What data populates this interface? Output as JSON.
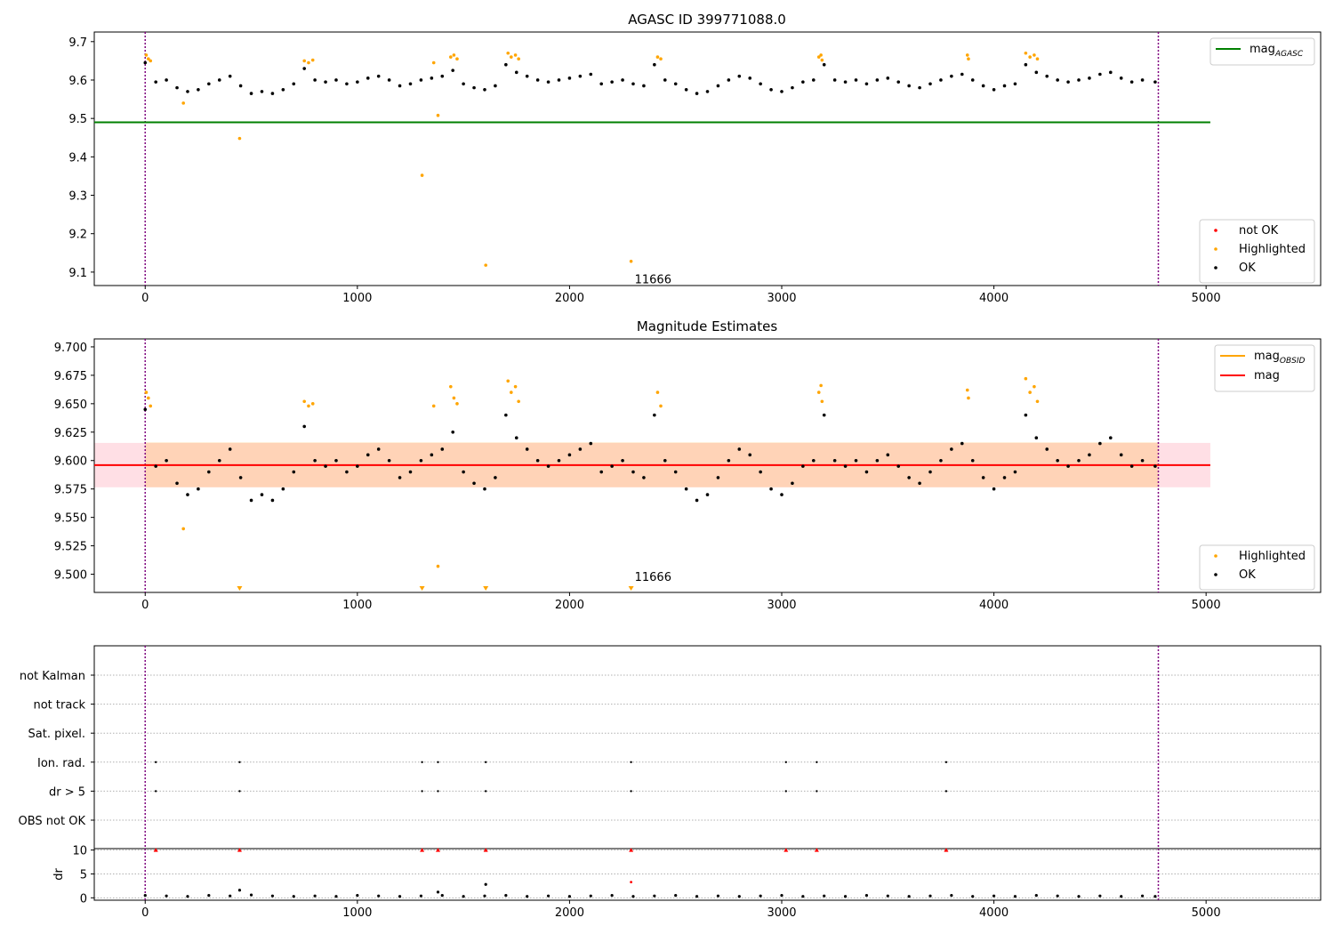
{
  "chart_data": [
    {
      "type": "scatter",
      "title": "AGASC ID 399771088.0",
      "xlim": [
        -240,
        5540
      ],
      "ylim": [
        9.065,
        9.725
      ],
      "xticks": [
        "0",
        "1000",
        "2000",
        "3000",
        "4000",
        "5000"
      ],
      "yticks": [
        "9.1",
        "9.2",
        "9.3",
        "9.4",
        "9.5",
        "9.6",
        "9.7"
      ],
      "obs_boundaries": [
        0,
        4775
      ],
      "legend_lines": [
        {
          "label": "mag",
          "subscript": "AGASC",
          "color": "#008000"
        }
      ],
      "legend_points": [
        {
          "label": "not OK",
          "color": "#ff0000"
        },
        {
          "label": "Highlighted",
          "color": "#ffa500"
        },
        {
          "label": "OK",
          "color": "#000000"
        }
      ],
      "mag_agasc": 9.49,
      "mag_agasc_xrange": [
        -240,
        5020
      ],
      "annotation": {
        "text": "11666",
        "x": 2290,
        "y": 9.08
      },
      "series": [
        {
          "label": "OK",
          "color": "#000000",
          "x": [
            0,
            50,
            100,
            150,
            200,
            250,
            300,
            350,
            400,
            450,
            500,
            550,
            600,
            650,
            700,
            750,
            800,
            850,
            900,
            950,
            1000,
            1050,
            1100,
            1150,
            1200,
            1250,
            1300,
            1350,
            1400,
            1450,
            1500,
            1550,
            1600,
            1650,
            1700,
            1750,
            1800,
            1850,
            1900,
            1950,
            2000,
            2050,
            2100,
            2150,
            2200,
            2250,
            2300,
            2350,
            2400,
            2450,
            2500,
            2550,
            2600,
            2650,
            2700,
            2750,
            2800,
            2850,
            2900,
            2950,
            3000,
            3050,
            3100,
            3150,
            3200,
            3250,
            3300,
            3350,
            3400,
            3450,
            3500,
            3550,
            3600,
            3650,
            3700,
            3750,
            3800,
            3850,
            3900,
            3950,
            4000,
            4050,
            4100,
            4150,
            4200,
            4250,
            4300,
            4350,
            4400,
            4450,
            4500,
            4550,
            4600,
            4650,
            4700,
            4760
          ],
          "y": [
            9.645,
            9.595,
            9.6,
            9.58,
            9.57,
            9.575,
            9.59,
            9.6,
            9.61,
            9.585,
            9.565,
            9.57,
            9.565,
            9.575,
            9.59,
            9.63,
            9.6,
            9.595,
            9.6,
            9.59,
            9.595,
            9.605,
            9.61,
            9.6,
            9.585,
            9.59,
            9.6,
            9.605,
            9.61,
            9.625,
            9.59,
            9.58,
            9.575,
            9.585,
            9.64,
            9.62,
            9.61,
            9.6,
            9.595,
            9.6,
            9.605,
            9.61,
            9.615,
            9.59,
            9.595,
            9.6,
            9.59,
            9.585,
            9.64,
            9.6,
            9.59,
            9.575,
            9.565,
            9.57,
            9.585,
            9.6,
            9.61,
            9.605,
            9.59,
            9.575,
            9.57,
            9.58,
            9.595,
            9.6,
            9.64,
            9.6,
            9.595,
            9.6,
            9.59,
            9.6,
            9.605,
            9.595,
            9.585,
            9.58,
            9.59,
            9.6,
            9.61,
            9.615,
            9.6,
            9.585,
            9.575,
            9.585,
            9.59,
            9.64,
            9.62,
            9.61,
            9.6,
            9.595,
            9.6,
            9.605,
            9.615,
            9.62,
            9.605,
            9.595,
            9.6,
            9.595
          ]
        },
        {
          "label": "Highlighted",
          "color": "#ffa500",
          "x": [
            5,
            15,
            25,
            180,
            445,
            750,
            770,
            790,
            1305,
            1360,
            1380,
            1440,
            1455,
            1470,
            1605,
            1710,
            1725,
            1745,
            1760,
            2290,
            2415,
            2430,
            3175,
            3185,
            3190,
            3875,
            3880,
            4150,
            4170,
            4190,
            4205
          ],
          "y": [
            9.665,
            9.655,
            9.65,
            9.54,
            9.448,
            9.65,
            9.645,
            9.652,
            9.352,
            9.645,
            9.508,
            9.66,
            9.665,
            9.655,
            9.118,
            9.67,
            9.66,
            9.665,
            9.655,
            9.128,
            9.66,
            9.655,
            9.66,
            9.665,
            9.652,
            9.665,
            9.655,
            9.67,
            9.66,
            9.665,
            9.655
          ]
        }
      ]
    },
    {
      "type": "scatter",
      "title": "Magnitude Estimates",
      "xlim": [
        -240,
        5540
      ],
      "ylim": [
        9.484,
        9.707
      ],
      "xticks": [
        "0",
        "1000",
        "2000",
        "3000",
        "4000",
        "5000"
      ],
      "yticks": [
        "9.500",
        "9.525",
        "9.550",
        "9.575",
        "9.600",
        "9.625",
        "9.650",
        "9.675",
        "9.700"
      ],
      "obs_boundaries": [
        0,
        4775
      ],
      "legend_lines": [
        {
          "label": "mag",
          "subscript": "OBSID",
          "color": "#ffa500"
        },
        {
          "label": "mag",
          "subscript": "",
          "color": "#ff0000"
        }
      ],
      "legend_points": [
        {
          "label": "Highlighted",
          "color": "#ffa500"
        },
        {
          "label": "OK",
          "color": "#000000"
        }
      ],
      "mag": 9.596,
      "mag_band": [
        9.5765,
        9.6155
      ],
      "mag_band_xrange": [
        -240,
        5020
      ],
      "mag_obsid_band": [
        9.5765,
        9.616
      ],
      "mag_obsid_band_xrange": [
        0,
        4775
      ],
      "annotation": {
        "text": "11666",
        "x": 2290,
        "y": 9.491
      },
      "lower_limit_markers_x": [
        445,
        1305,
        1605,
        2290
      ],
      "series": [
        {
          "label": "OK",
          "color": "#000000",
          "x": [
            0,
            50,
            100,
            150,
            200,
            250,
            300,
            350,
            400,
            450,
            500,
            550,
            600,
            650,
            700,
            750,
            800,
            850,
            900,
            950,
            1000,
            1050,
            1100,
            1150,
            1200,
            1250,
            1300,
            1350,
            1400,
            1450,
            1500,
            1550,
            1600,
            1650,
            1700,
            1750,
            1800,
            1850,
            1900,
            1950,
            2000,
            2050,
            2100,
            2150,
            2200,
            2250,
            2300,
            2350,
            2400,
            2450,
            2500,
            2550,
            2600,
            2650,
            2700,
            2750,
            2800,
            2850,
            2900,
            2950,
            3000,
            3050,
            3100,
            3150,
            3200,
            3250,
            3300,
            3350,
            3400,
            3450,
            3500,
            3550,
            3600,
            3650,
            3700,
            3750,
            3800,
            3850,
            3900,
            3950,
            4000,
            4050,
            4100,
            4150,
            4200,
            4250,
            4300,
            4350,
            4400,
            4450,
            4500,
            4550,
            4600,
            4650,
            4700,
            4760
          ],
          "y": [
            9.645,
            9.595,
            9.6,
            9.58,
            9.57,
            9.575,
            9.59,
            9.6,
            9.61,
            9.585,
            9.565,
            9.57,
            9.565,
            9.575,
            9.59,
            9.63,
            9.6,
            9.595,
            9.6,
            9.59,
            9.595,
            9.605,
            9.61,
            9.6,
            9.585,
            9.59,
            9.6,
            9.605,
            9.61,
            9.625,
            9.59,
            9.58,
            9.575,
            9.585,
            9.64,
            9.62,
            9.61,
            9.6,
            9.595,
            9.6,
            9.605,
            9.61,
            9.615,
            9.59,
            9.595,
            9.6,
            9.59,
            9.585,
            9.64,
            9.6,
            9.59,
            9.575,
            9.565,
            9.57,
            9.585,
            9.6,
            9.61,
            9.605,
            9.59,
            9.575,
            9.57,
            9.58,
            9.595,
            9.6,
            9.64,
            9.6,
            9.595,
            9.6,
            9.59,
            9.6,
            9.605,
            9.595,
            9.585,
            9.58,
            9.59,
            9.6,
            9.61,
            9.615,
            9.6,
            9.585,
            9.575,
            9.585,
            9.59,
            9.64,
            9.62,
            9.61,
            9.6,
            9.595,
            9.6,
            9.605,
            9.615,
            9.62,
            9.605,
            9.595,
            9.6,
            9.595
          ]
        },
        {
          "label": "Highlighted",
          "color": "#ffa500",
          "x": [
            5,
            15,
            25,
            180,
            1360,
            1380,
            1440,
            1455,
            1470,
            750,
            770,
            790,
            1710,
            1725,
            1745,
            1760,
            2415,
            2430,
            3175,
            3185,
            3190,
            3875,
            3880,
            4150,
            4170,
            4190,
            4205
          ],
          "y": [
            9.66,
            9.655,
            9.648,
            9.54,
            9.648,
            9.507,
            9.665,
            9.655,
            9.65,
            9.652,
            9.648,
            9.65,
            9.67,
            9.66,
            9.665,
            9.652,
            9.66,
            9.648,
            9.66,
            9.666,
            9.652,
            9.662,
            9.655,
            9.672,
            9.66,
            9.665,
            9.652
          ]
        }
      ]
    },
    {
      "type": "scatter",
      "title": "",
      "xlim": [
        -240,
        5540
      ],
      "xticks": [
        "0",
        "1000",
        "2000",
        "3000",
        "4000",
        "5000"
      ],
      "obs_boundaries": [
        0,
        4775
      ],
      "categories": [
        "not Kalman",
        "not track",
        "Sat. pixel.",
        "Ion. rad.",
        "dr > 5",
        "OBS not OK"
      ],
      "flag_points": [
        {
          "category": "Ion. rad.",
          "x": [
            50,
            445,
            1305,
            1380,
            1605,
            2290,
            3020,
            3165,
            3775
          ]
        },
        {
          "category": "dr > 5",
          "x": [
            50,
            445,
            1305,
            1380,
            1605,
            2290,
            3020,
            3165,
            3775
          ]
        }
      ]
    },
    {
      "type": "scatter",
      "title": "",
      "ylabel": "dr",
      "xlim": [
        -240,
        5540
      ],
      "ylim": [
        -0.5,
        10.3
      ],
      "xticks": [
        "0",
        "1000",
        "2000",
        "3000",
        "4000",
        "5000"
      ],
      "yticks": [
        "0",
        "5",
        "10"
      ],
      "obs_boundaries": [
        0,
        4775
      ],
      "clipped_markers_x": [
        50,
        445,
        1305,
        1380,
        1605,
        2290,
        3020,
        3165,
        3775
      ],
      "series": [
        {
          "label": "dr",
          "color": "#000000",
          "x": [
            0,
            100,
            200,
            300,
            400,
            500,
            600,
            700,
            800,
            900,
            1000,
            1100,
            1200,
            1300,
            1400,
            1500,
            1600,
            1700,
            1800,
            1900,
            2000,
            2100,
            2200,
            2300,
            2400,
            2500,
            2600,
            2700,
            2800,
            2900,
            3000,
            3100,
            3200,
            3300,
            3400,
            3500,
            3600,
            3700,
            3800,
            3900,
            4000,
            4100,
            4200,
            4300,
            4400,
            4500,
            4600,
            4700,
            4760,
            445,
            1380,
            1605
          ],
          "y": [
            0.5,
            0.4,
            0.3,
            0.5,
            0.4,
            0.6,
            0.4,
            0.3,
            0.4,
            0.3,
            0.5,
            0.4,
            0.3,
            0.4,
            0.5,
            0.3,
            0.4,
            0.5,
            0.3,
            0.4,
            0.3,
            0.4,
            0.5,
            0.3,
            0.4,
            0.5,
            0.3,
            0.4,
            0.3,
            0.4,
            0.5,
            0.3,
            0.4,
            0.3,
            0.5,
            0.4,
            0.3,
            0.4,
            0.5,
            0.3,
            0.4,
            0.3,
            0.5,
            0.4,
            0.3,
            0.4,
            0.3,
            0.4,
            0.3,
            1.6,
            1.2,
            2.8
          ]
        },
        {
          "label": "not OK",
          "color": "#ff0000",
          "x": [
            2290
          ],
          "y": [
            3.3
          ]
        }
      ]
    }
  ]
}
